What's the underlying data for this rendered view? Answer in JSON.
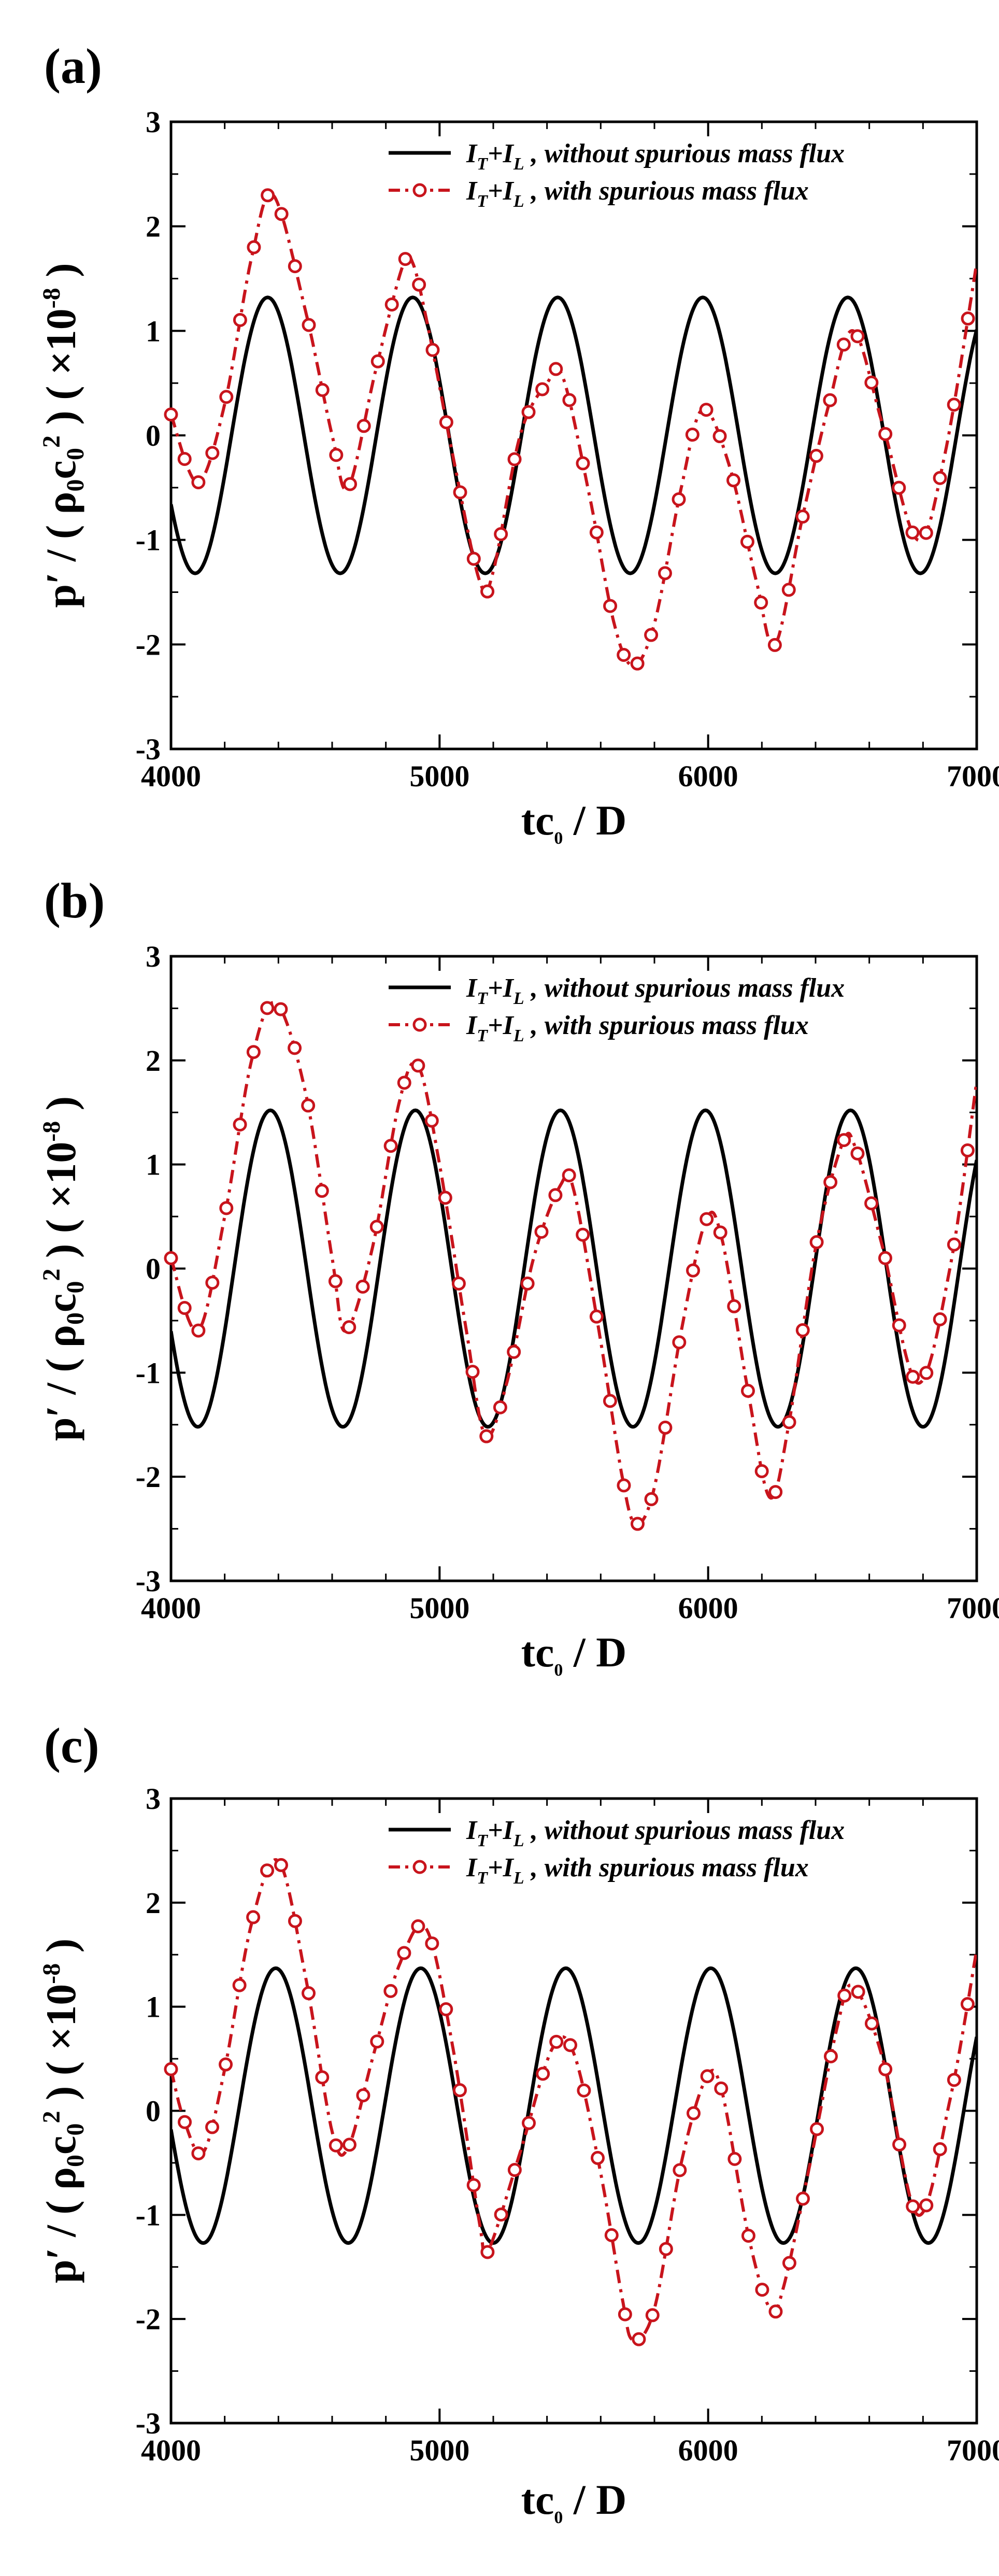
{
  "figure": {
    "panels": [
      "(a)",
      "(b)",
      "(c)"
    ]
  },
  "chart_data": [
    {
      "panel_label": "(a)",
      "type": "line",
      "title": "",
      "xlabel": "tc0 / D",
      "ylabel": "p′ / ( ρ0c0² ) ( ×10⁻⁸ )",
      "xlim": [
        4000,
        7000
      ],
      "ylim": [
        -3,
        3
      ],
      "xticks": [
        4000,
        5000,
        6000,
        7000
      ],
      "yticks": [
        -3,
        -2,
        -1,
        0,
        1,
        2,
        3
      ],
      "grid": false,
      "legend_position": "top-right",
      "series": [
        {
          "name": "I_T+I_L , without spurious mass flux",
          "legend": {
            "main1": "I",
            "sub1": "T",
            "plus": "+",
            "main2": "I",
            "sub2": "L",
            "rest": " , without spurious mass flux"
          },
          "style": "solid",
          "color": "#000000",
          "model": {
            "amplitude": 1.32,
            "offset": 0.0,
            "period": 540,
            "peak_x": 4360
          }
        },
        {
          "name": "I_T+I_L , with spurious mass flux",
          "legend": {
            "main1": "I",
            "sub1": "T",
            "plus": "+",
            "main2": "I",
            "sub2": "L",
            "rest": " , with spurious mass flux"
          },
          "style": "dash-dot-circle",
          "color": "#c8141c",
          "x": [
            4000,
            4100,
            4200,
            4300,
            4380,
            4500,
            4600,
            4660,
            4760,
            4860,
            4900,
            4960,
            5050,
            5150,
            5200,
            5300,
            5400,
            5460,
            5560,
            5650,
            5720,
            5800,
            5900,
            5980,
            6080,
            6180,
            6250,
            6350,
            6450,
            6540,
            6650,
            6780,
            6880,
            7000
          ],
          "y": [
            0.2,
            -0.45,
            0.3,
            1.7,
            2.3,
            1.2,
            0.0,
            -0.5,
            0.6,
            1.6,
            1.65,
            1.0,
            -0.2,
            -1.4,
            -1.3,
            0.0,
            0.5,
            0.55,
            -0.6,
            -1.8,
            -2.2,
            -1.8,
            -0.5,
            0.25,
            -0.3,
            -1.4,
            -2.0,
            -0.8,
            0.3,
            1.0,
            0.1,
            -1.0,
            -0.2,
            1.65
          ]
        }
      ]
    },
    {
      "panel_label": "(b)",
      "type": "line",
      "title": "",
      "xlabel": "tc0 / D",
      "ylabel": "p′ / ( ρ0c0² ) ( ×10⁻⁸ )",
      "xlim": [
        4000,
        7000
      ],
      "ylim": [
        -3,
        3
      ],
      "xticks": [
        4000,
        5000,
        6000,
        7000
      ],
      "yticks": [
        -3,
        -2,
        -1,
        0,
        1,
        2,
        3
      ],
      "grid": false,
      "legend_position": "top-right",
      "series": [
        {
          "name": "I_T+I_L , without spurious mass flux",
          "legend": {
            "main1": "I",
            "sub1": "T",
            "plus": "+",
            "main2": "I",
            "sub2": "L",
            "rest": " , without spurious mass flux"
          },
          "style": "solid",
          "color": "#000000",
          "model": {
            "amplitude": 1.52,
            "offset": 0.0,
            "period": 540,
            "peak_x": 4370
          }
        },
        {
          "name": "I_T+I_L , with spurious mass flux",
          "legend": {
            "main1": "I",
            "sub1": "T",
            "plus": "+",
            "main2": "I",
            "sub2": "L",
            "rest": " , with spurious mass flux"
          },
          "style": "dash-dot-circle",
          "color": "#c8141c",
          "x": [
            4000,
            4100,
            4200,
            4300,
            4390,
            4500,
            4600,
            4650,
            4750,
            4850,
            4920,
            5000,
            5100,
            5170,
            5250,
            5350,
            5450,
            5500,
            5600,
            5680,
            5730,
            5800,
            5900,
            5990,
            6050,
            6150,
            6230,
            6300,
            6400,
            6500,
            6550,
            6650,
            6780,
            6900,
            7000
          ],
          "y": [
            0.1,
            -0.6,
            0.5,
            2.0,
            2.55,
            1.7,
            0.1,
            -0.6,
            0.2,
            1.6,
            1.95,
            1.0,
            -0.6,
            -1.6,
            -1.1,
            0.1,
            0.8,
            0.75,
            -0.7,
            -2.0,
            -2.45,
            -2.1,
            -0.6,
            0.45,
            0.3,
            -1.2,
            -2.2,
            -1.5,
            0.2,
            1.2,
            1.15,
            0.2,
            -1.1,
            0.0,
            1.8
          ]
        }
      ]
    },
    {
      "panel_label": "(c)",
      "type": "line",
      "title": "",
      "xlabel": "tc0 / D",
      "ylabel": "p′ / ( ρ0c0² ) ( ×10⁻⁸ )",
      "xlim": [
        4000,
        7000
      ],
      "ylim": [
        -3,
        3
      ],
      "xticks": [
        4000,
        5000,
        6000,
        7000
      ],
      "yticks": [
        -3,
        -2,
        -1,
        0,
        1,
        2,
        3
      ],
      "grid": false,
      "legend_position": "top-right",
      "series": [
        {
          "name": "I_T+I_L , without spurious mass flux",
          "legend": {
            "main1": "I",
            "sub1": "T",
            "plus": "+",
            "main2": "I",
            "sub2": "L",
            "rest": " , without spurious mass flux"
          },
          "style": "solid",
          "color": "#000000",
          "model": {
            "amplitude": 1.32,
            "offset": 0.05,
            "period": 540,
            "peak_x": 4390
          }
        },
        {
          "name": "I_T+I_L , with spurious mass flux",
          "legend": {
            "main1": "I",
            "sub1": "T",
            "plus": "+",
            "main2": "I",
            "sub2": "L",
            "rest": " , with spurious mass flux"
          },
          "style": "dash-dot-circle",
          "color": "#c8141c",
          "x": [
            4000,
            4050,
            4120,
            4200,
            4300,
            4400,
            4500,
            4600,
            4660,
            4750,
            4850,
            4950,
            5050,
            5150,
            5180,
            5300,
            5420,
            5500,
            5600,
            5680,
            5720,
            5800,
            5900,
            5990,
            6050,
            6150,
            6230,
            6280,
            6380,
            6480,
            6540,
            6650,
            6780,
            6900,
            7000
          ],
          "y": [
            0.4,
            -0.1,
            -0.4,
            0.4,
            1.8,
            2.4,
            1.3,
            -0.2,
            -0.35,
            0.5,
            1.4,
            1.75,
            0.6,
            -1.1,
            -1.35,
            -0.4,
            0.6,
            0.55,
            -0.6,
            -1.8,
            -2.2,
            -1.9,
            -0.5,
            0.3,
            0.2,
            -1.2,
            -1.9,
            -1.7,
            -0.5,
            0.8,
            1.2,
            0.5,
            -1.0,
            0.1,
            1.55
          ]
        }
      ]
    }
  ]
}
